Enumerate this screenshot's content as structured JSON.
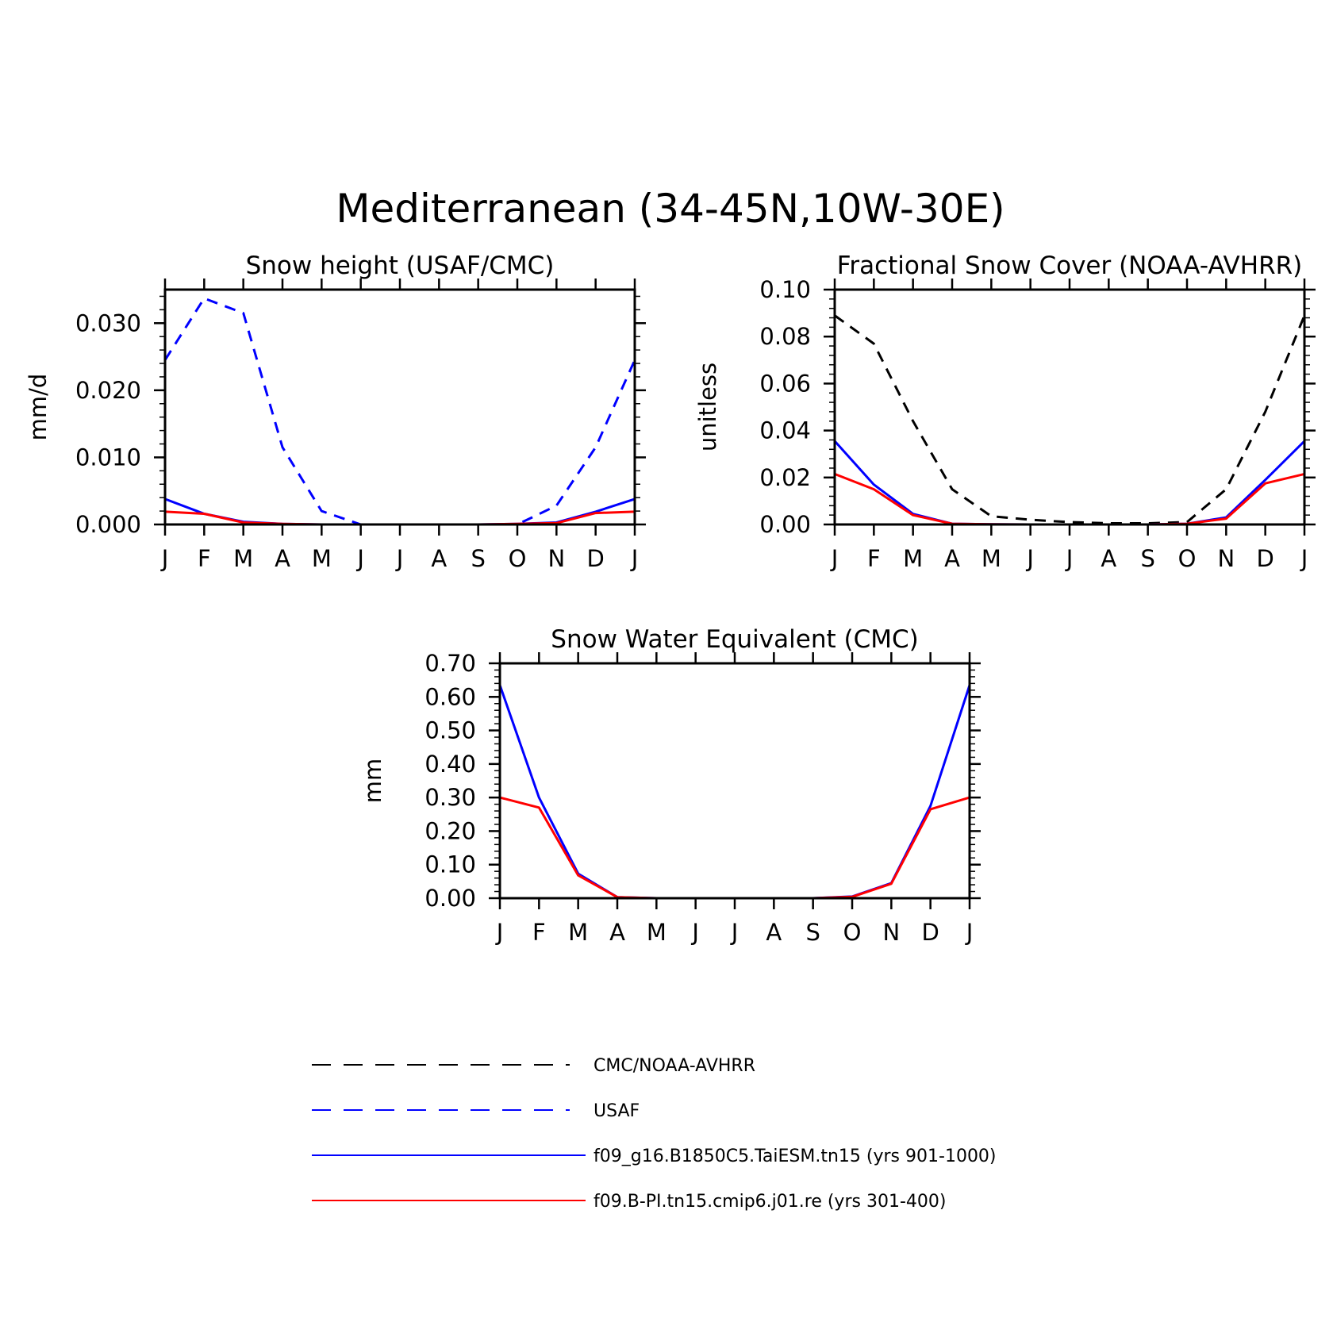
{
  "figure": {
    "title": "Mediterranean (34-45N,10W-30E)"
  },
  "colors": {
    "observation": "#000000",
    "usaf": "#0000ff",
    "taiesm": "#0000ff",
    "cmip6": "#ff0000"
  },
  "legend": [
    {
      "label": "CMC/NOAA-AVHRR",
      "color": "#000000",
      "style": "dashed"
    },
    {
      "label": "USAF",
      "color": "#0000ff",
      "style": "dashed"
    },
    {
      "label": "f09_g16.B1850C5.TaiESM.tn15 (yrs 901-1000)",
      "color": "#0000ff",
      "style": "solid"
    },
    {
      "label": "f09.B-PI.tn15.cmip6.j01.re (yrs 301-400)",
      "color": "#ff0000",
      "style": "solid"
    }
  ],
  "chart_data": [
    {
      "type": "line",
      "title": "Snow height (USAF/CMC)",
      "ylabel": "mm/d",
      "xlabel": "",
      "categories": [
        "J",
        "F",
        "M",
        "A",
        "M",
        "J",
        "J",
        "A",
        "S",
        "O",
        "N",
        "D",
        "J"
      ],
      "ylim": [
        0,
        0.035
      ],
      "yticks": [
        0.0,
        0.01,
        0.02,
        0.03
      ],
      "ytick_labels": [
        "0.000",
        "0.010",
        "0.020",
        "0.030"
      ],
      "series": [
        {
          "name": "USAF",
          "color": "#0000ff",
          "style": "dashed",
          "values": [
            0.0245,
            0.0337,
            0.0315,
            0.0115,
            0.002,
            0.0,
            0.0,
            0.0,
            0.0,
            0.0,
            0.0028,
            0.0115,
            0.0245
          ]
        },
        {
          "name": "f09_g16.B1850C5.TaiESM.tn15 (yrs 901-1000)",
          "color": "#0000ff",
          "style": "solid",
          "values": [
            0.0038,
            0.0016,
            0.0004,
            0.0001,
            0.0,
            0.0,
            0.0,
            0.0,
            0.0,
            0.0001,
            0.0003,
            0.0019,
            0.0038
          ]
        },
        {
          "name": "f09.B-PI.tn15.cmip6.j01.re (yrs 301-400)",
          "color": "#ff0000",
          "style": "solid",
          "values": [
            0.0019,
            0.0016,
            0.0003,
            0.0001,
            0.0,
            0.0,
            0.0,
            0.0,
            0.0,
            0.0001,
            0.0002,
            0.0017,
            0.0019
          ]
        }
      ]
    },
    {
      "type": "line",
      "title": "Fractional Snow Cover (NOAA-AVHRR)",
      "ylabel": "unitless",
      "xlabel": "",
      "categories": [
        "J",
        "F",
        "M",
        "A",
        "M",
        "J",
        "J",
        "A",
        "S",
        "O",
        "N",
        "D",
        "J"
      ],
      "ylim": [
        0,
        0.1
      ],
      "yticks": [
        0.0,
        0.02,
        0.04,
        0.06,
        0.08,
        0.1
      ],
      "ytick_labels": [
        "0.00",
        "0.02",
        "0.04",
        "0.06",
        "0.08",
        "0.10"
      ],
      "series": [
        {
          "name": "CMC/NOAA-AVHRR",
          "color": "#000000",
          "style": "dashed",
          "values": [
            0.089,
            0.077,
            0.044,
            0.015,
            0.0035,
            0.002,
            0.001,
            0.0005,
            0.0005,
            0.001,
            0.015,
            0.048,
            0.089
          ]
        },
        {
          "name": "f09_g16.B1850C5.TaiESM.tn15 (yrs 901-1000)",
          "color": "#0000ff",
          "style": "solid",
          "values": [
            0.0355,
            0.017,
            0.0045,
            0.0003,
            0.0001,
            0.0,
            0.0,
            0.0,
            0.0,
            0.0003,
            0.003,
            0.019,
            0.0355
          ]
        },
        {
          "name": "f09.B-PI.tn15.cmip6.j01.re (yrs 301-400)",
          "color": "#ff0000",
          "style": "solid",
          "values": [
            0.0215,
            0.015,
            0.004,
            0.0003,
            0.0001,
            0.0,
            0.0,
            0.0,
            0.0,
            0.0003,
            0.0025,
            0.0175,
            0.0215
          ]
        }
      ]
    },
    {
      "type": "line",
      "title": "Snow Water Equivalent (CMC)",
      "ylabel": "mm",
      "xlabel": "",
      "categories": [
        "J",
        "F",
        "M",
        "A",
        "M",
        "J",
        "J",
        "A",
        "S",
        "O",
        "N",
        "D",
        "J"
      ],
      "ylim": [
        0,
        0.7
      ],
      "yticks": [
        0.0,
        0.1,
        0.2,
        0.3,
        0.4,
        0.5,
        0.6,
        0.7
      ],
      "ytick_labels": [
        "0.00",
        "0.10",
        "0.20",
        "0.30",
        "0.40",
        "0.50",
        "0.60",
        "0.70"
      ],
      "series": [
        {
          "name": "CMC/NOAA-AVHRR",
          "color": "#000000",
          "style": "dashed",
          "values": [
            0.0,
            0.0,
            0.0,
            0.0,
            0.0,
            0.0,
            0.0,
            0.0,
            0.0,
            0.0,
            0.0,
            0.0,
            0.0
          ]
        },
        {
          "name": "f09_g16.B1850C5.TaiESM.tn15 (yrs 901-1000)",
          "color": "#0000ff",
          "style": "solid",
          "values": [
            0.635,
            0.3,
            0.073,
            0.003,
            0.0,
            0.0,
            0.0,
            0.0,
            0.0,
            0.005,
            0.045,
            0.275,
            0.635
          ]
        },
        {
          "name": "f09.B-PI.tn15.cmip6.j01.re (yrs 301-400)",
          "color": "#ff0000",
          "style": "solid",
          "values": [
            0.3,
            0.27,
            0.068,
            0.003,
            0.0,
            0.0,
            0.0,
            0.0,
            0.0,
            0.004,
            0.043,
            0.265,
            0.3
          ]
        }
      ]
    }
  ]
}
